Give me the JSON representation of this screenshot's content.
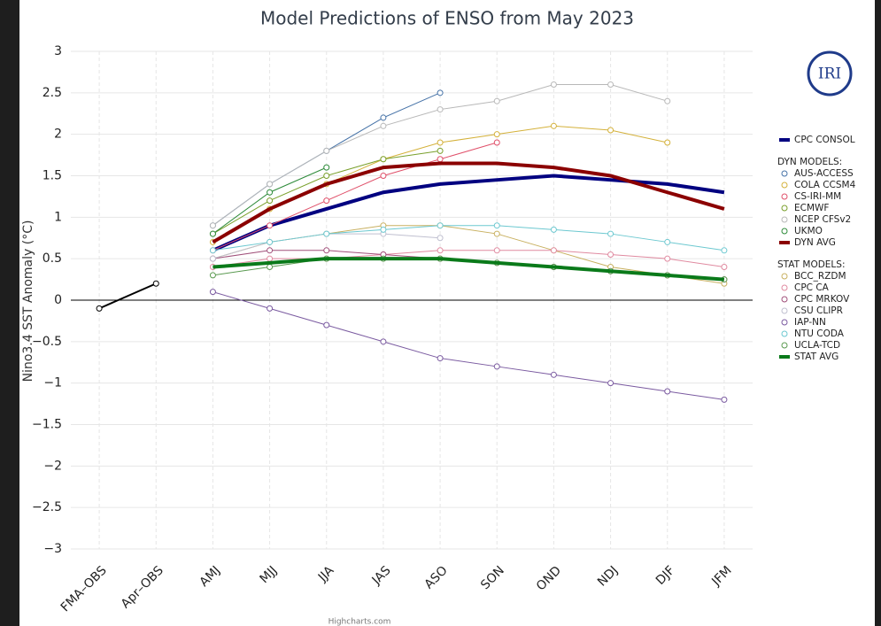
{
  "chart_data": {
    "type": "line",
    "title": "Model Predictions of ENSO from May 2023",
    "y_label": "Nino3.4 SST Anomaly (°C)",
    "credit": "Highcharts.com",
    "logo_text": "IRI",
    "categories": [
      "FMA–OBS",
      "Apr–OBS",
      "AMJ",
      "MJJ",
      "JJA",
      "JAS",
      "ASO",
      "SON",
      "OND",
      "NDJ",
      "DJF",
      "JFM"
    ],
    "ylim": [
      -3,
      3
    ],
    "yticks": [
      {
        "value": -3,
        "label": "−3"
      },
      {
        "value": -2.5,
        "label": "−2.5"
      },
      {
        "value": -2,
        "label": "−2"
      },
      {
        "value": -1.5,
        "label": "−1.5"
      },
      {
        "value": -1,
        "label": "−1"
      },
      {
        "value": -0.5,
        "label": "−0.5"
      },
      0,
      0.5,
      1,
      1.5,
      2,
      2.5,
      3
    ],
    "grid": true,
    "legend_position": "right",
    "legend_headings": [
      "DYN MODELS:",
      "STAT MODELS:"
    ],
    "observed": {
      "color": "#000000",
      "values": [
        -0.1,
        0.2,
        null,
        null,
        null,
        null,
        null,
        null,
        null,
        null,
        null,
        null
      ]
    },
    "series": [
      {
        "name": "CPC CONSOL",
        "group": 0,
        "color": "#000080",
        "line_width": 4,
        "values": [
          null,
          null,
          0.6,
          0.9,
          1.1,
          1.3,
          1.4,
          1.45,
          1.5,
          1.45,
          1.4,
          1.3
        ]
      },
      {
        "name": "AUS-ACCESS",
        "group": 1,
        "color": "#4572a7",
        "line_width": 1,
        "values": [
          null,
          null,
          0.9,
          1.4,
          1.8,
          2.2,
          2.5,
          null,
          null,
          null,
          null,
          null
        ]
      },
      {
        "name": "COLA CCSM4",
        "group": 1,
        "color": "#d4b13a",
        "line_width": 1,
        "values": [
          null,
          null,
          0.7,
          1.1,
          1.4,
          1.7,
          1.9,
          2.0,
          2.1,
          2.05,
          1.9,
          null
        ]
      },
      {
        "name": "CS-IRI-MM",
        "group": 1,
        "color": "#e0506a",
        "line_width": 1,
        "values": [
          null,
          null,
          0.6,
          0.9,
          1.2,
          1.5,
          1.7,
          1.9,
          null,
          null,
          null,
          null
        ]
      },
      {
        "name": "ECMWF",
        "group": 1,
        "color": "#7aa02c",
        "line_width": 1,
        "values": [
          null,
          null,
          0.8,
          1.2,
          1.5,
          1.7,
          1.8,
          null,
          null,
          null,
          null,
          null
        ]
      },
      {
        "name": "NCEP CFSv2",
        "group": 1,
        "color": "#b8b8b8",
        "line_width": 1,
        "values": [
          null,
          null,
          0.9,
          1.4,
          1.8,
          2.1,
          2.3,
          2.4,
          2.6,
          2.6,
          2.4,
          null
        ]
      },
      {
        "name": "UKMO",
        "group": 1,
        "color": "#2e8b3a",
        "line_width": 1,
        "values": [
          null,
          null,
          0.8,
          1.3,
          1.6,
          null,
          null,
          null,
          null,
          null,
          null,
          null
        ]
      },
      {
        "name": "DYN AVG",
        "group": 1,
        "color": "#8b0000",
        "line_width": 4,
        "values": [
          null,
          null,
          0.7,
          1.1,
          1.4,
          1.6,
          1.65,
          1.65,
          1.6,
          1.5,
          1.3,
          1.1
        ]
      },
      {
        "name": "BCC_RZDM",
        "group": 2,
        "color": "#c8b060",
        "line_width": 1,
        "values": [
          null,
          null,
          0.5,
          0.7,
          0.8,
          0.9,
          0.9,
          0.8,
          0.6,
          0.4,
          0.3,
          0.2
        ]
      },
      {
        "name": "CPC CA",
        "group": 2,
        "color": "#e08aa0",
        "line_width": 1,
        "values": [
          null,
          null,
          0.4,
          0.5,
          0.5,
          0.55,
          0.6,
          0.6,
          0.6,
          0.55,
          0.5,
          0.4
        ]
      },
      {
        "name": "CPC MRKOV",
        "group": 2,
        "color": "#a0507a",
        "line_width": 1,
        "values": [
          null,
          null,
          0.5,
          0.6,
          0.6,
          0.55,
          0.5,
          0.45,
          0.4,
          0.35,
          0.3,
          0.25
        ]
      },
      {
        "name": "CSU CLIPR",
        "group": 2,
        "color": "#c0c0d0",
        "line_width": 1,
        "values": [
          null,
          null,
          0.5,
          0.7,
          0.8,
          0.8,
          0.75,
          null,
          null,
          null,
          null,
          null
        ]
      },
      {
        "name": "IAP-NN",
        "group": 2,
        "color": "#7a5aa0",
        "line_width": 1,
        "values": [
          null,
          null,
          0.1,
          -0.1,
          -0.3,
          -0.5,
          -0.7,
          -0.8,
          -0.9,
          -1.0,
          -1.1,
          -1.2
        ]
      },
      {
        "name": "NTU CODA",
        "group": 2,
        "color": "#6cc8d0",
        "line_width": 1,
        "values": [
          null,
          null,
          0.6,
          0.7,
          0.8,
          0.85,
          0.9,
          0.9,
          0.85,
          0.8,
          0.7,
          0.6
        ]
      },
      {
        "name": "UCLA-TCD",
        "group": 2,
        "color": "#5a9a50",
        "line_width": 1,
        "values": [
          null,
          null,
          0.3,
          0.4,
          0.5,
          0.5,
          0.5,
          0.45,
          0.4,
          0.35,
          0.3,
          0.25
        ]
      },
      {
        "name": "STAT AVG",
        "group": 2,
        "color": "#0a7a1a",
        "line_width": 4,
        "values": [
          null,
          null,
          0.4,
          0.45,
          0.5,
          0.5,
          0.5,
          0.45,
          0.4,
          0.35,
          0.3,
          0.25
        ]
      }
    ]
  }
}
